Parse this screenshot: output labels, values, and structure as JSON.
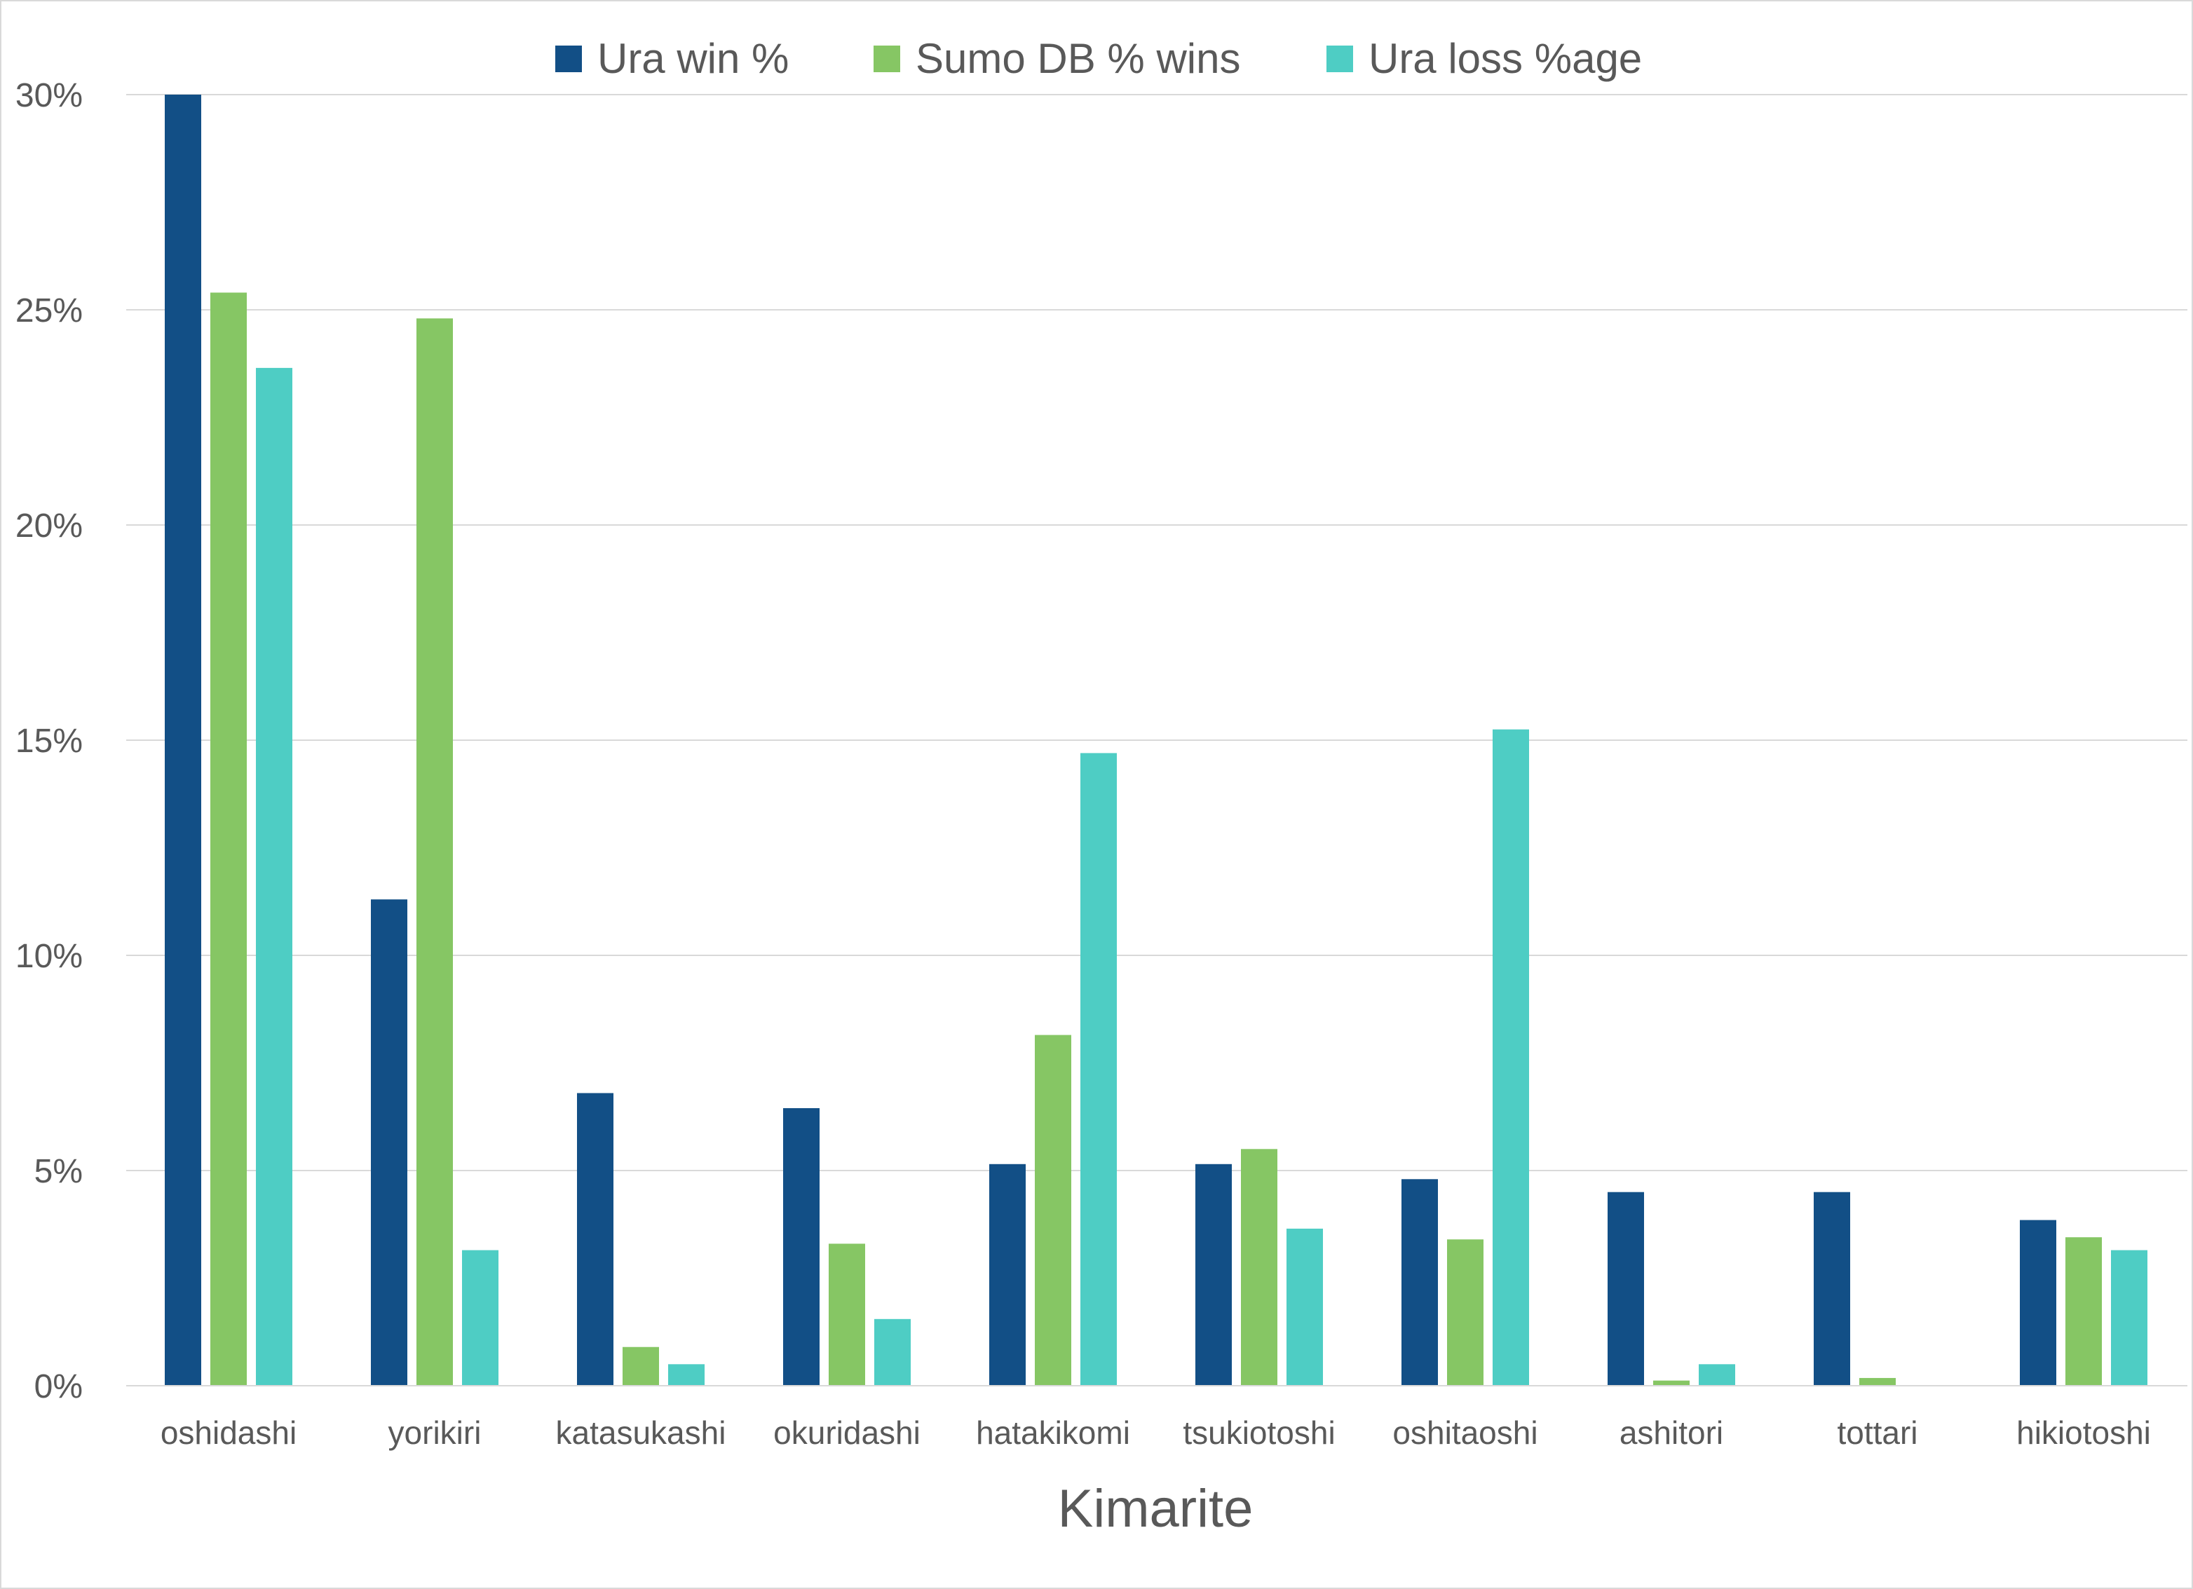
{
  "chart_data": {
    "type": "bar",
    "title": "",
    "xlabel": "Kimarite",
    "ylabel": "",
    "ylim": [
      0,
      30
    ],
    "yticks": [
      "0%",
      "5%",
      "10%",
      "15%",
      "20%",
      "25%",
      "30%"
    ],
    "grid": true,
    "legend_position": "top",
    "categories": [
      "oshidashi",
      "yorikiri",
      "katasukashi",
      "okuridashi",
      "hatakikomi",
      "tsukiotoshi",
      "oshitaoshi",
      "ashitori",
      "tottari",
      "hikiotoshi"
    ],
    "series": [
      {
        "name": "Ura win %",
        "color": "#124f86",
        "values": [
          30.0,
          11.3,
          6.8,
          6.45,
          5.15,
          5.15,
          4.8,
          4.5,
          4.5,
          3.85
        ]
      },
      {
        "name": "Sumo DB % wins",
        "color": "#86c664",
        "values": [
          25.4,
          24.8,
          0.9,
          3.3,
          8.15,
          5.5,
          3.4,
          0.12,
          0.18,
          3.45
        ]
      },
      {
        "name": "Ura loss %age",
        "color": "#4ecdc4",
        "values": [
          23.65,
          3.15,
          0.5,
          1.55,
          14.7,
          3.65,
          15.25,
          0.5,
          0,
          3.15
        ]
      }
    ]
  }
}
